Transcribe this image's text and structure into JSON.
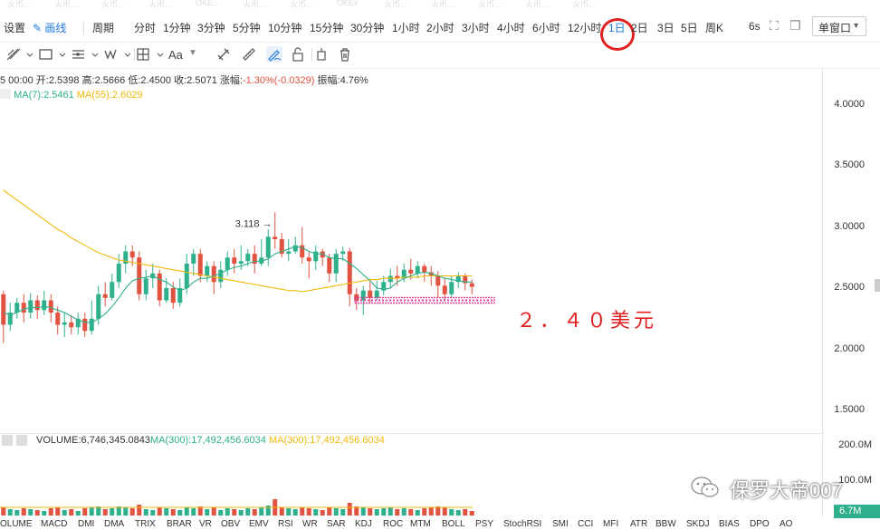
{
  "watermark_tabs": [
    "火币...",
    "火币...",
    "火币...",
    "火币...",
    "OKE...",
    "火币...",
    "火币...",
    "OKEx",
    "火币...",
    "火币...",
    "火币...",
    "火币...",
    "火币..."
  ],
  "toolbar": {
    "settings": "设置",
    "draw": "画线",
    "period_label": "周期",
    "periods": [
      "分时",
      "1分钟",
      "3分钟",
      "5分钟",
      "10分钟",
      "15分钟",
      "30分钟",
      "1小时",
      "2小时",
      "3小时",
      "4小时",
      "6小时",
      "12小时",
      "1日",
      "2日",
      "3日",
      "5日",
      "周K"
    ],
    "active_period": "1日",
    "refresh": "6s",
    "window_mode": "单窗口"
  },
  "ohlc": {
    "time": "5 00:00",
    "open_label": "开:",
    "open": "2.5398",
    "high_label": "高:",
    "high": "2.5666",
    "low_label": "低:",
    "low": "2.4500",
    "close_label": "收:",
    "close": "2.5071",
    "change_label": "涨幅:",
    "change": "-1.30%(-0.0329)",
    "amplitude_label": "振幅:",
    "amplitude": "4.76%"
  },
  "ma": {
    "ma7": "MA(7):2.5461",
    "ma55": "MA(55):2.6029",
    "ma7_color": "#2eb08c",
    "ma55_color": "#f0b90b"
  },
  "chart_data": {
    "type": "candlestick",
    "ylim": [
      1.3,
      4.3
    ],
    "yticks": [
      "4.0000",
      "3.5000",
      "3.0000",
      "2.5000",
      "2.0000",
      "1.5000"
    ],
    "high_marker": "3.118",
    "support_level": 2.4,
    "up_color": "#2eb08c",
    "down_color": "#e15241",
    "candles": [
      [
        2.45,
        2.2,
        2.48,
        2.05
      ],
      [
        2.2,
        2.3,
        2.38,
        2.15
      ],
      [
        2.3,
        2.38,
        2.42,
        2.25
      ],
      [
        2.38,
        2.3,
        2.45,
        2.22
      ],
      [
        2.3,
        2.4,
        2.46,
        2.25
      ],
      [
        2.4,
        2.32,
        2.44,
        2.25
      ],
      [
        2.32,
        2.4,
        2.48,
        2.28
      ],
      [
        2.4,
        2.3,
        2.45,
        2.22
      ],
      [
        2.3,
        2.2,
        2.35,
        2.12
      ],
      [
        2.2,
        2.22,
        2.3,
        2.1
      ],
      [
        2.22,
        2.18,
        2.28,
        2.12
      ],
      [
        2.18,
        2.25,
        2.3,
        2.12
      ],
      [
        2.25,
        2.15,
        2.3,
        2.1
      ],
      [
        2.15,
        2.25,
        2.4,
        2.12
      ],
      [
        2.25,
        2.45,
        2.52,
        2.2
      ],
      [
        2.45,
        2.42,
        2.55,
        2.35
      ],
      [
        2.42,
        2.55,
        2.62,
        2.4
      ],
      [
        2.55,
        2.7,
        2.78,
        2.5
      ],
      [
        2.7,
        2.8,
        2.85,
        2.62
      ],
      [
        2.8,
        2.75,
        2.85,
        2.68
      ],
      [
        2.75,
        2.45,
        2.8,
        2.4
      ],
      [
        2.45,
        2.58,
        2.65,
        2.4
      ],
      [
        2.58,
        2.62,
        2.7,
        2.5
      ],
      [
        2.62,
        2.4,
        2.65,
        2.35
      ],
      [
        2.4,
        2.5,
        2.58,
        2.38
      ],
      [
        2.5,
        2.38,
        2.55,
        2.33
      ],
      [
        2.38,
        2.5,
        2.58,
        2.35
      ],
      [
        2.5,
        2.7,
        2.78,
        2.45
      ],
      [
        2.7,
        2.78,
        2.82,
        2.6
      ],
      [
        2.78,
        2.6,
        2.82,
        2.55
      ],
      [
        2.6,
        2.68,
        2.72,
        2.55
      ],
      [
        2.68,
        2.55,
        2.72,
        2.45
      ],
      [
        2.55,
        2.65,
        2.72,
        2.5
      ],
      [
        2.65,
        2.75,
        2.8,
        2.6
      ],
      [
        2.75,
        2.7,
        2.82,
        2.62
      ],
      [
        2.7,
        2.72,
        2.85,
        2.65
      ],
      [
        2.72,
        2.78,
        2.82,
        2.68
      ],
      [
        2.78,
        2.7,
        2.85,
        2.62
      ],
      [
        2.7,
        2.75,
        2.9,
        2.68
      ],
      [
        2.75,
        2.92,
        2.98,
        2.68
      ],
      [
        2.92,
        2.9,
        3.12,
        2.82
      ],
      [
        2.9,
        2.78,
        2.95,
        2.75
      ],
      [
        2.78,
        2.8,
        2.9,
        2.72
      ],
      [
        2.8,
        2.85,
        2.92,
        2.78
      ],
      [
        2.85,
        2.75,
        3.0,
        2.7
      ],
      [
        2.75,
        2.72,
        2.8,
        2.58
      ],
      [
        2.72,
        2.8,
        2.85,
        2.65
      ],
      [
        2.8,
        2.75,
        2.82,
        2.68
      ],
      [
        2.75,
        2.62,
        2.78,
        2.55
      ],
      [
        2.62,
        2.78,
        2.82,
        2.55
      ],
      [
        2.78,
        2.8,
        2.84,
        2.72
      ],
      [
        2.8,
        2.45,
        2.83,
        2.35
      ],
      [
        2.45,
        2.4,
        2.5,
        2.32
      ],
      [
        2.4,
        2.48,
        2.52,
        2.28
      ],
      [
        2.48,
        2.42,
        2.55,
        2.38
      ],
      [
        2.42,
        2.48,
        2.56,
        2.4
      ],
      [
        2.48,
        2.55,
        2.6,
        2.44
      ],
      [
        2.55,
        2.6,
        2.66,
        2.5
      ],
      [
        2.6,
        2.58,
        2.68,
        2.52
      ],
      [
        2.58,
        2.65,
        2.7,
        2.55
      ],
      [
        2.65,
        2.62,
        2.74,
        2.57
      ],
      [
        2.62,
        2.68,
        2.72,
        2.58
      ],
      [
        2.68,
        2.63,
        2.7,
        2.55
      ],
      [
        2.63,
        2.6,
        2.68,
        2.52
      ],
      [
        2.6,
        2.52,
        2.64,
        2.42
      ],
      [
        2.52,
        2.45,
        2.58,
        2.4
      ],
      [
        2.45,
        2.55,
        2.6,
        2.42
      ],
      [
        2.55,
        2.6,
        2.63,
        2.5
      ],
      [
        2.6,
        2.54,
        2.62,
        2.48
      ],
      [
        2.54,
        2.51,
        2.57,
        2.45
      ]
    ],
    "ma7": [
      2.3,
      2.28,
      2.3,
      2.33,
      2.34,
      2.34,
      2.35,
      2.34,
      2.32,
      2.3,
      2.27,
      2.24,
      2.22,
      2.22,
      2.25,
      2.29,
      2.35,
      2.42,
      2.5,
      2.56,
      2.58,
      2.59,
      2.6,
      2.57,
      2.55,
      2.51,
      2.48,
      2.5,
      2.55,
      2.58,
      2.58,
      2.6,
      2.62,
      2.65,
      2.67,
      2.68,
      2.7,
      2.72,
      2.72,
      2.74,
      2.78,
      2.8,
      2.82,
      2.84,
      2.83,
      2.8,
      2.78,
      2.78,
      2.75,
      2.74,
      2.74,
      2.7,
      2.66,
      2.61,
      2.56,
      2.5,
      2.49,
      2.5,
      2.55,
      2.58,
      2.6,
      2.62,
      2.63,
      2.62,
      2.6,
      2.58,
      2.57,
      2.56,
      2.55,
      2.55
    ],
    "ma55": [
      3.3,
      3.26,
      3.22,
      3.18,
      3.14,
      3.1,
      3.06,
      3.02,
      2.98,
      2.95,
      2.91,
      2.88,
      2.85,
      2.82,
      2.79,
      2.77,
      2.75,
      2.73,
      2.72,
      2.71,
      2.7,
      2.69,
      2.68,
      2.67,
      2.66,
      2.65,
      2.64,
      2.63,
      2.62,
      2.61,
      2.6,
      2.59,
      2.58,
      2.57,
      2.56,
      2.55,
      2.54,
      2.53,
      2.52,
      2.51,
      2.5,
      2.49,
      2.48,
      2.48,
      2.47,
      2.48,
      2.49,
      2.5,
      2.51,
      2.52,
      2.53,
      2.54,
      2.55,
      2.56,
      2.57,
      2.57,
      2.58,
      2.58,
      2.58,
      2.59,
      2.59,
      2.59,
      2.6,
      2.6,
      2.6,
      2.6,
      2.6,
      2.6,
      2.6,
      2.6
    ]
  },
  "volume": {
    "label": "VOLUME:6,746,345.0843",
    "ma1": "MA(300):17,492,456.6034",
    "ma2": "MA(300):17,492,456.6034",
    "ticks": [
      "200.0M",
      "100.0M"
    ],
    "badge": "6.7M",
    "values": [
      9,
      7,
      6,
      8,
      7,
      6,
      5,
      8,
      9,
      6,
      7,
      5,
      8,
      9,
      10,
      7,
      8,
      10,
      9,
      8,
      12,
      7,
      6,
      9,
      8,
      7,
      6,
      9,
      8,
      10,
      7,
      9,
      6,
      8,
      7,
      6,
      8,
      7,
      9,
      11,
      18,
      9,
      8,
      7,
      9,
      8,
      7,
      6,
      9,
      8,
      7,
      14,
      10,
      9,
      8,
      7,
      8,
      9,
      7,
      8,
      7,
      6,
      8,
      9,
      10,
      9,
      7,
      6,
      7,
      5
    ]
  },
  "indicator_tabs": [
    "OLUME",
    "MACD",
    "DMI",
    "DMA",
    "TRIX",
    "BRAR",
    "VR",
    "OBV",
    "EMV",
    "RSI",
    "WR",
    "SAR",
    "KDJ",
    "ROC",
    "MTM",
    "BOLL",
    "PSY",
    "StochRSI",
    "SMI",
    "CCI",
    "MFI",
    "ATR",
    "BBW",
    "SKDJ",
    "BIAS",
    "DPO",
    "AO"
  ],
  "annotation": "２．４０美元",
  "watermark": "保罗大帝007"
}
